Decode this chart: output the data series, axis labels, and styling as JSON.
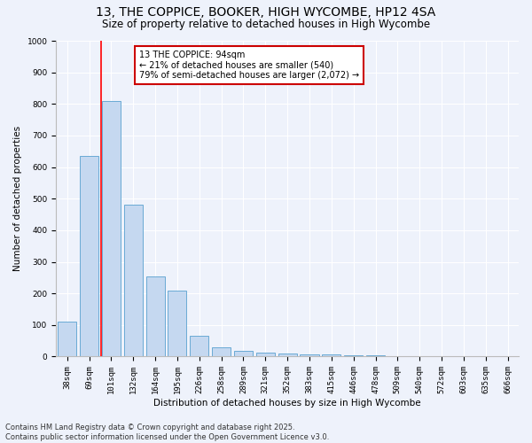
{
  "title": "13, THE COPPICE, BOOKER, HIGH WYCOMBE, HP12 4SA",
  "subtitle": "Size of property relative to detached houses in High Wycombe",
  "xlabel": "Distribution of detached houses by size in High Wycombe",
  "ylabel": "Number of detached properties",
  "categories": [
    "38sqm",
    "69sqm",
    "101sqm",
    "132sqm",
    "164sqm",
    "195sqm",
    "226sqm",
    "258sqm",
    "289sqm",
    "321sqm",
    "352sqm",
    "383sqm",
    "415sqm",
    "446sqm",
    "478sqm",
    "509sqm",
    "540sqm",
    "572sqm",
    "603sqm",
    "635sqm",
    "666sqm"
  ],
  "values": [
    110,
    635,
    810,
    480,
    255,
    210,
    65,
    28,
    18,
    12,
    10,
    8,
    8,
    5,
    3,
    2,
    0,
    0,
    0,
    0,
    0
  ],
  "bar_color": "#c5d8f0",
  "bar_edge_color": "#6aaad4",
  "red_line_x": 1.55,
  "annotation_text": "13 THE COPPICE: 94sqm\n← 21% of detached houses are smaller (540)\n79% of semi-detached houses are larger (2,072) →",
  "annotation_box_color": "#ffffff",
  "annotation_box_edge_color": "#cc0000",
  "footer_text": "Contains HM Land Registry data © Crown copyright and database right 2025.\nContains public sector information licensed under the Open Government Licence v3.0.",
  "bg_color": "#eef2fb",
  "ylim": [
    0,
    1000
  ],
  "yticks": [
    0,
    100,
    200,
    300,
    400,
    500,
    600,
    700,
    800,
    900,
    1000
  ],
  "title_fontsize": 10,
  "subtitle_fontsize": 8.5,
  "axis_label_fontsize": 7.5,
  "tick_fontsize": 6.5,
  "footer_fontsize": 6,
  "annotation_fontsize": 7
}
